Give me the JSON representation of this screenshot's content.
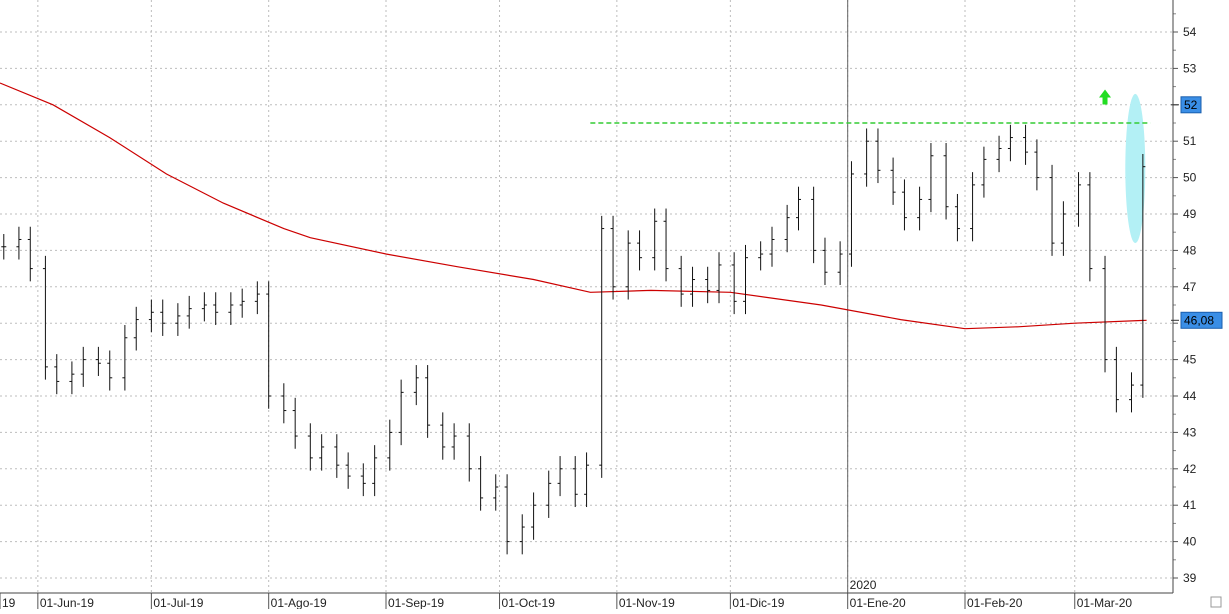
{
  "chart_data": {
    "type": "bar",
    "subtype": "ohlc",
    "title": "",
    "xlabel": "",
    "ylabel": "",
    "ylim": [
      38.7,
      55.2
    ],
    "y_ticks": [
      "39",
      "40",
      "41",
      "42",
      "43",
      "44",
      "45",
      "46",
      "47",
      "48",
      "49",
      "50",
      "51",
      "52",
      "53",
      "54"
    ],
    "x_ticks": [
      {
        "label": "19",
        "date": "2019-05-22"
      },
      {
        "label": "01-Jun-19",
        "date": "2019-06-01"
      },
      {
        "label": "01-Jul-19",
        "date": "2019-07-01"
      },
      {
        "label": "01-Ago-19",
        "date": "2019-08-01"
      },
      {
        "label": "01-Sep-19",
        "date": "2019-09-01"
      },
      {
        "label": "01-Oct-19",
        "date": "2019-10-01"
      },
      {
        "label": "01-Nov-19",
        "date": "2019-11-01"
      },
      {
        "label": "01-Dic-19",
        "date": "2019-12-01"
      },
      {
        "label": "01-Ene-20",
        "date": "2020-01-01"
      },
      {
        "label": "01-Feb-20",
        "date": "2020-02-01"
      },
      {
        "label": "01-Mar-20",
        "date": "2020-03-01"
      }
    ],
    "year_marker": {
      "label": "2020",
      "date": "2020-01-01"
    },
    "date_range": [
      "2019-05-22",
      "2020-03-23"
    ],
    "grid": true,
    "price_series": [
      {
        "date": "2019-05-23",
        "close": 48.1
      },
      {
        "date": "2019-05-27",
        "close": 48.3
      },
      {
        "date": "2019-05-30",
        "close": 47.5
      },
      {
        "date": "2019-06-03",
        "close": 44.8
      },
      {
        "date": "2019-06-06",
        "close": 44.4
      },
      {
        "date": "2019-06-10",
        "close": 44.6
      },
      {
        "date": "2019-06-13",
        "close": 45.0
      },
      {
        "date": "2019-06-17",
        "close": 44.9
      },
      {
        "date": "2019-06-20",
        "close": 44.5
      },
      {
        "date": "2019-06-24",
        "close": 45.6
      },
      {
        "date": "2019-06-27",
        "close": 46.1
      },
      {
        "date": "2019-07-01",
        "close": 46.3
      },
      {
        "date": "2019-07-04",
        "close": 46.0
      },
      {
        "date": "2019-07-08",
        "close": 46.2
      },
      {
        "date": "2019-07-11",
        "close": 46.4
      },
      {
        "date": "2019-07-15",
        "close": 46.5
      },
      {
        "date": "2019-07-18",
        "close": 46.3
      },
      {
        "date": "2019-07-22",
        "close": 46.5
      },
      {
        "date": "2019-07-25",
        "close": 46.6
      },
      {
        "date": "2019-07-29",
        "close": 46.8
      },
      {
        "date": "2019-08-01",
        "close": 44.0
      },
      {
        "date": "2019-08-05",
        "close": 43.6
      },
      {
        "date": "2019-08-08",
        "close": 42.9
      },
      {
        "date": "2019-08-12",
        "close": 42.3
      },
      {
        "date": "2019-08-15",
        "close": 42.6
      },
      {
        "date": "2019-08-19",
        "close": 42.1
      },
      {
        "date": "2019-08-22",
        "close": 41.8
      },
      {
        "date": "2019-08-26",
        "close": 41.6
      },
      {
        "date": "2019-08-29",
        "close": 42.3
      },
      {
        "date": "2019-09-02",
        "close": 43.0
      },
      {
        "date": "2019-09-05",
        "close": 44.1
      },
      {
        "date": "2019-09-09",
        "close": 44.5
      },
      {
        "date": "2019-09-12",
        "close": 43.2
      },
      {
        "date": "2019-09-16",
        "close": 42.6
      },
      {
        "date": "2019-09-19",
        "close": 42.9
      },
      {
        "date": "2019-09-23",
        "close": 42.0
      },
      {
        "date": "2019-09-26",
        "close": 41.2
      },
      {
        "date": "2019-09-30",
        "close": 41.5
      },
      {
        "date": "2019-10-03",
        "close": 40.0
      },
      {
        "date": "2019-10-07",
        "close": 40.4
      },
      {
        "date": "2019-10-10",
        "close": 41.0
      },
      {
        "date": "2019-10-14",
        "close": 41.6
      },
      {
        "date": "2019-10-17",
        "close": 42.0
      },
      {
        "date": "2019-10-21",
        "close": 41.3
      },
      {
        "date": "2019-10-24",
        "close": 42.1
      },
      {
        "date": "2019-10-28",
        "close": 48.6
      },
      {
        "date": "2019-10-31",
        "close": 47.0
      },
      {
        "date": "2019-11-04",
        "close": 48.2
      },
      {
        "date": "2019-11-07",
        "close": 47.8
      },
      {
        "date": "2019-11-11",
        "close": 48.8
      },
      {
        "date": "2019-11-14",
        "close": 47.5
      },
      {
        "date": "2019-11-18",
        "close": 46.8
      },
      {
        "date": "2019-11-21",
        "close": 47.2
      },
      {
        "date": "2019-11-25",
        "close": 46.9
      },
      {
        "date": "2019-11-28",
        "close": 47.6
      },
      {
        "date": "2019-12-02",
        "close": 46.6
      },
      {
        "date": "2019-12-05",
        "close": 47.8
      },
      {
        "date": "2019-12-09",
        "close": 47.9
      },
      {
        "date": "2019-12-12",
        "close": 48.3
      },
      {
        "date": "2019-12-16",
        "close": 48.9
      },
      {
        "date": "2019-12-19",
        "close": 49.4
      },
      {
        "date": "2019-12-23",
        "close": 48.0
      },
      {
        "date": "2019-12-26",
        "close": 47.4
      },
      {
        "date": "2019-12-30",
        "close": 47.9
      },
      {
        "date": "2020-01-02",
        "close": 50.1
      },
      {
        "date": "2020-01-06",
        "close": 51.0
      },
      {
        "date": "2020-01-09",
        "close": 50.2
      },
      {
        "date": "2020-01-13",
        "close": 49.6
      },
      {
        "date": "2020-01-16",
        "close": 48.9
      },
      {
        "date": "2020-01-20",
        "close": 49.4
      },
      {
        "date": "2020-01-23",
        "close": 50.6
      },
      {
        "date": "2020-01-27",
        "close": 49.2
      },
      {
        "date": "2020-01-30",
        "close": 48.6
      },
      {
        "date": "2020-02-03",
        "close": 49.8
      },
      {
        "date": "2020-02-06",
        "close": 50.5
      },
      {
        "date": "2020-02-10",
        "close": 50.8
      },
      {
        "date": "2020-02-13",
        "close": 51.1
      },
      {
        "date": "2020-02-17",
        "close": 50.7
      },
      {
        "date": "2020-02-20",
        "close": 50.0
      },
      {
        "date": "2020-02-24",
        "close": 48.2
      },
      {
        "date": "2020-02-27",
        "close": 49.0
      },
      {
        "date": "2020-03-02",
        "close": 49.8
      },
      {
        "date": "2020-03-05",
        "close": 47.5
      },
      {
        "date": "2020-03-09",
        "close": 45.0
      },
      {
        "date": "2020-03-12",
        "close": 43.9
      },
      {
        "date": "2020-03-16",
        "close": 44.3
      },
      {
        "date": "2020-03-19",
        "close": 50.3
      }
    ],
    "moving_average": {
      "color": "#cc0000",
      "points": [
        {
          "date": "2019-05-22",
          "value": 52.6
        },
        {
          "date": "2019-06-05",
          "value": 52.0
        },
        {
          "date": "2019-06-20",
          "value": 51.1
        },
        {
          "date": "2019-07-05",
          "value": 50.1
        },
        {
          "date": "2019-07-20",
          "value": 49.3
        },
        {
          "date": "2019-08-05",
          "value": 48.6
        },
        {
          "date": "2019-08-12",
          "value": 48.35
        },
        {
          "date": "2019-09-01",
          "value": 47.9
        },
        {
          "date": "2019-09-20",
          "value": 47.55
        },
        {
          "date": "2019-10-10",
          "value": 47.2
        },
        {
          "date": "2019-10-25",
          "value": 46.85
        },
        {
          "date": "2019-11-10",
          "value": 46.9
        },
        {
          "date": "2019-12-01",
          "value": 46.85
        },
        {
          "date": "2019-12-25",
          "value": 46.5
        },
        {
          "date": "2020-01-15",
          "value": 46.1
        },
        {
          "date": "2020-02-01",
          "value": 45.85
        },
        {
          "date": "2020-02-15",
          "value": 45.9
        },
        {
          "date": "2020-03-01",
          "value": 46.0
        },
        {
          "date": "2020-03-20",
          "value": 46.08
        }
      ]
    },
    "resistance_line": {
      "value": 51.5,
      "start": "2019-10-25",
      "end": "2020-03-21",
      "color": "#33cc33",
      "style": "dashed"
    },
    "highlight_ellipse": {
      "date": "2020-03-17",
      "y_min": 48.2,
      "y_max": 52.3,
      "color": "#b3f0f5"
    },
    "breakout_arrow": {
      "date": "2020-03-09",
      "value": 52.2,
      "direction": "up",
      "color": "#22dd22"
    },
    "price_labels": [
      {
        "label": "52",
        "value": 52.0,
        "bg": "#3a8ee6"
      },
      {
        "label": "46,08",
        "value": 46.08,
        "bg": "#3a8ee6"
      }
    ]
  }
}
